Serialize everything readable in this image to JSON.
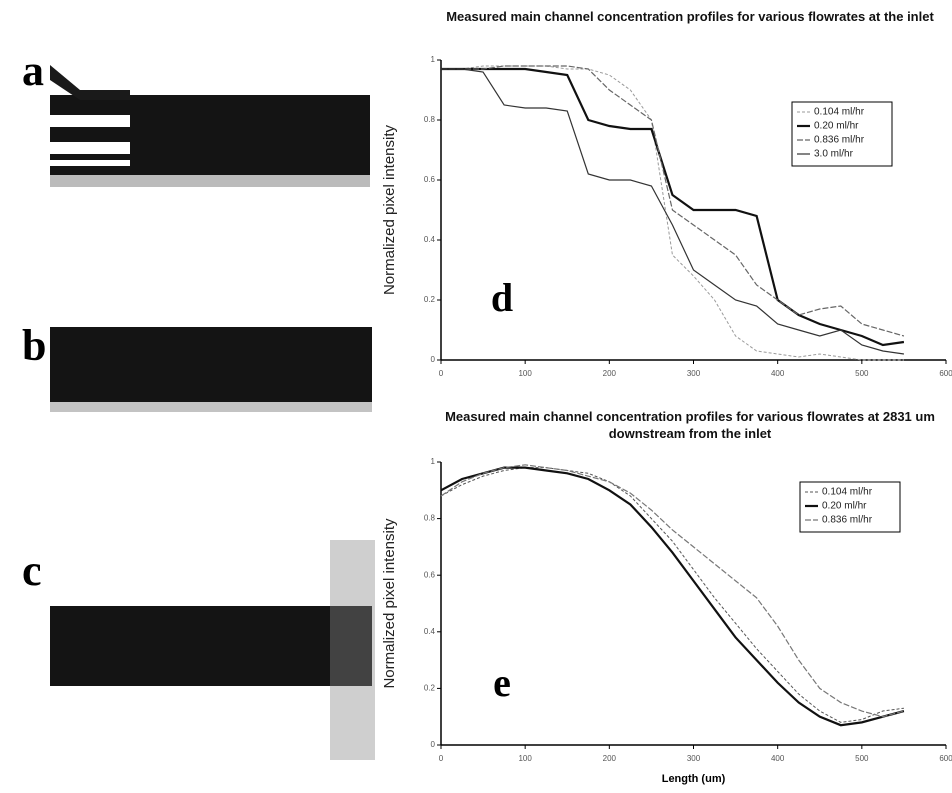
{
  "panels": [
    {
      "label": "a"
    },
    {
      "label": "b"
    },
    {
      "label": "c"
    }
  ],
  "chart_data": [
    {
      "type": "line",
      "title": "Measured main channel concentration profiles for various flowrates at the inlet",
      "y_label": "Normalized pixel intensity",
      "annotation": "d",
      "x": [
        0,
        25,
        50,
        75,
        100,
        125,
        150,
        175,
        200,
        225,
        250,
        275,
        300,
        325,
        350,
        375,
        400,
        425,
        450,
        475,
        500,
        525,
        550
      ],
      "xlim": [
        0,
        600
      ],
      "xticks": [
        0,
        100,
        200,
        300,
        400,
        500,
        600
      ],
      "ylim": [
        0,
        1
      ],
      "yticks": [
        0,
        0.2,
        0.4,
        0.6,
        0.8,
        1
      ],
      "series": [
        {
          "name": "0.104 ml/hr",
          "color": "#9a9a9a",
          "values": [
            0.97,
            0.97,
            0.98,
            0.98,
            0.98,
            0.98,
            0.97,
            0.97,
            0.95,
            0.9,
            0.8,
            0.35,
            0.28,
            0.2,
            0.08,
            0.03,
            0.02,
            0.01,
            0.02,
            0.01,
            0,
            0,
            0
          ]
        },
        {
          "name": "0.20 ml/hr",
          "color": "#111111",
          "values": [
            0.97,
            0.97,
            0.97,
            0.97,
            0.97,
            0.96,
            0.95,
            0.8,
            0.78,
            0.77,
            0.77,
            0.55,
            0.5,
            0.5,
            0.5,
            0.48,
            0.2,
            0.15,
            0.12,
            0.1,
            0.08,
            0.05,
            0.06
          ]
        },
        {
          "name": "0.836 ml/hr",
          "color": "#666666",
          "values": [
            0.97,
            0.97,
            0.97,
            0.98,
            0.98,
            0.98,
            0.98,
            0.97,
            0.9,
            0.85,
            0.8,
            0.5,
            0.45,
            0.4,
            0.35,
            0.25,
            0.2,
            0.15,
            0.17,
            0.18,
            0.12,
            0.1,
            0.08
          ]
        },
        {
          "name": "3.0 ml/hr",
          "color": "#333333",
          "values": [
            0.97,
            0.97,
            0.96,
            0.85,
            0.84,
            0.84,
            0.83,
            0.62,
            0.6,
            0.6,
            0.58,
            0.45,
            0.3,
            0.25,
            0.2,
            0.18,
            0.12,
            0.1,
            0.08,
            0.1,
            0.05,
            0.03,
            0.02
          ]
        }
      ]
    },
    {
      "type": "line",
      "title": "Measured main channel concentration profiles for various flowrates at 2831 um downstream from the inlet",
      "y_label": "Normalized pixel intensity",
      "x_label": "Length (um)",
      "annotation": "e",
      "x": [
        0,
        25,
        50,
        75,
        100,
        125,
        150,
        175,
        200,
        225,
        250,
        275,
        300,
        325,
        350,
        375,
        400,
        425,
        450,
        475,
        500,
        525,
        550
      ],
      "xlim": [
        0,
        600
      ],
      "xticks": [
        0,
        100,
        200,
        300,
        400,
        500,
        600
      ],
      "ylim": [
        0,
        1
      ],
      "yticks": [
        0,
        0.2,
        0.4,
        0.6,
        0.8,
        1
      ],
      "series": [
        {
          "name": "0.104 ml/hr",
          "color": "#555555",
          "values": [
            0.88,
            0.92,
            0.95,
            0.97,
            0.98,
            0.98,
            0.97,
            0.96,
            0.93,
            0.88,
            0.8,
            0.72,
            0.62,
            0.52,
            0.43,
            0.34,
            0.26,
            0.18,
            0.12,
            0.08,
            0.09,
            0.12,
            0.13
          ]
        },
        {
          "name": "0.20 ml/hr",
          "color": "#111111",
          "values": [
            0.9,
            0.94,
            0.96,
            0.98,
            0.98,
            0.97,
            0.96,
            0.94,
            0.9,
            0.85,
            0.77,
            0.68,
            0.58,
            0.48,
            0.38,
            0.3,
            0.22,
            0.15,
            0.1,
            0.07,
            0.08,
            0.1,
            0.12
          ]
        },
        {
          "name": "0.836 ml/hr",
          "color": "#777777",
          "values": [
            0.88,
            0.93,
            0.96,
            0.98,
            0.99,
            0.98,
            0.97,
            0.95,
            0.93,
            0.89,
            0.83,
            0.76,
            0.7,
            0.64,
            0.58,
            0.52,
            0.42,
            0.3,
            0.2,
            0.15,
            0.12,
            0.1,
            0.12
          ]
        }
      ]
    }
  ]
}
